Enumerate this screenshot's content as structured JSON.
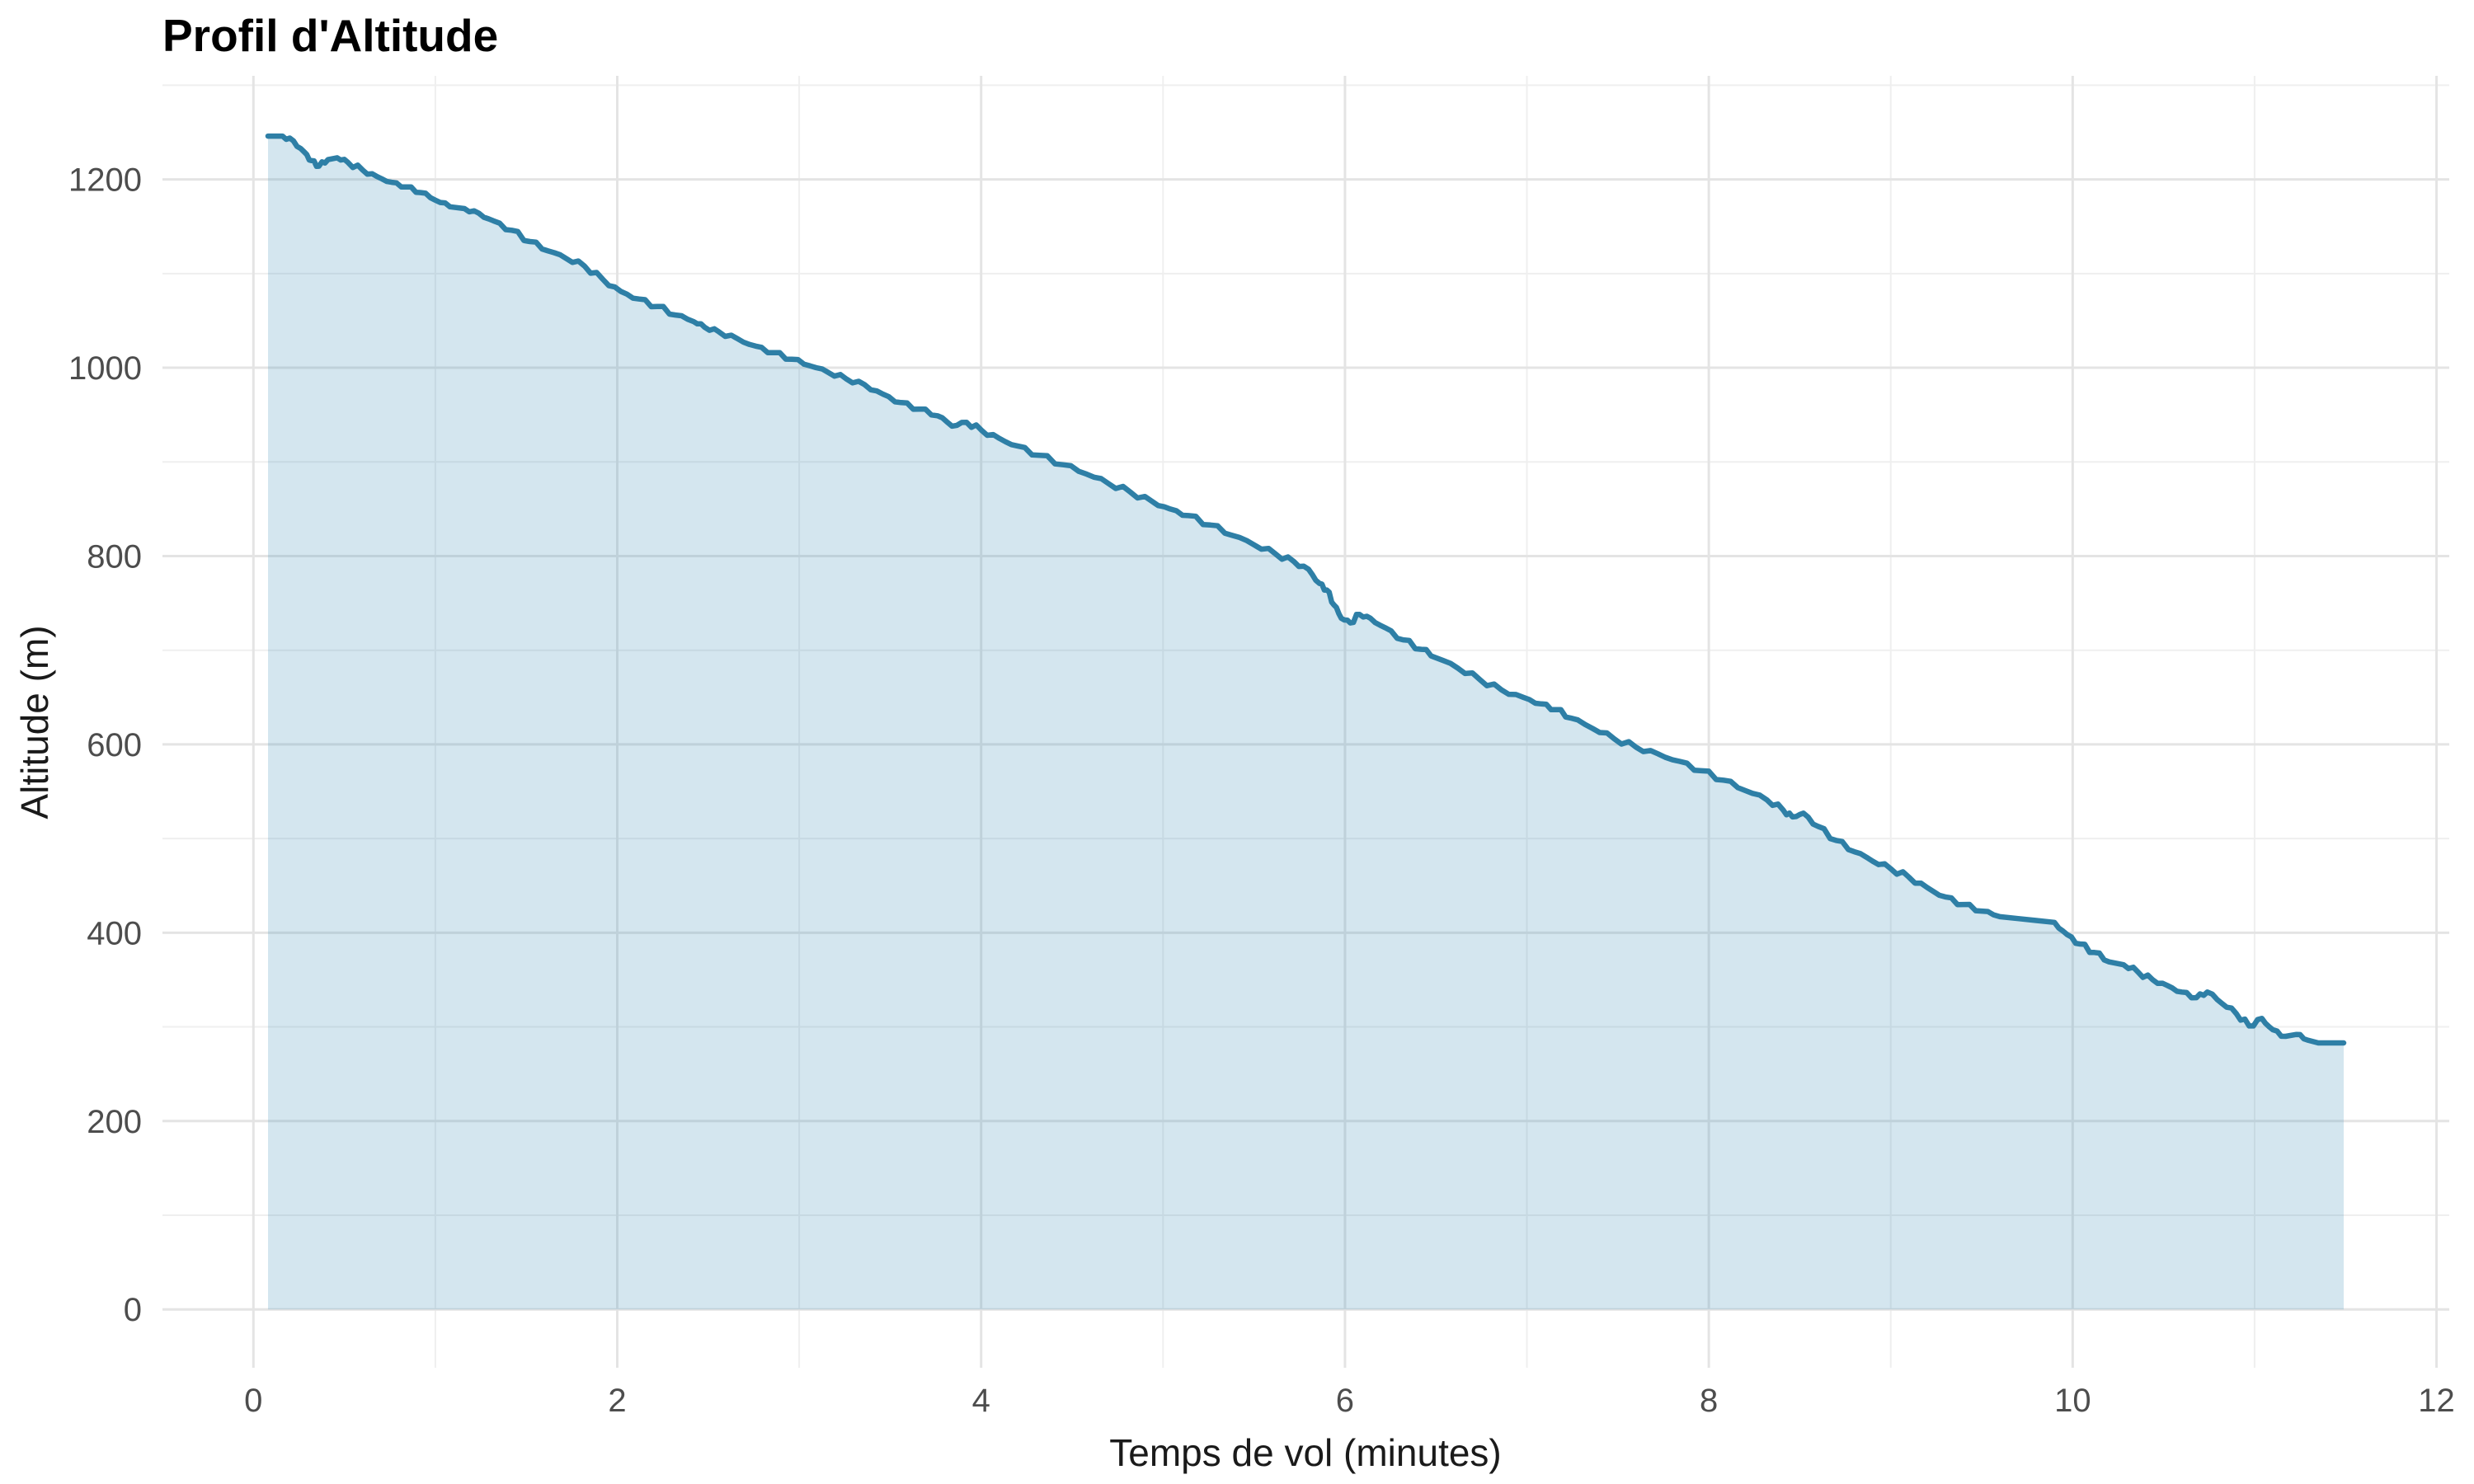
{
  "chart_data": {
    "type": "area",
    "title": "Profil d'Altitude",
    "xlabel": "Temps de vol (minutes)",
    "ylabel": "Altitude (m)",
    "x_ticks_major": [
      0,
      2,
      4,
      6,
      8,
      10,
      12
    ],
    "x_ticks_minor": [
      1,
      3,
      5,
      7,
      9,
      11
    ],
    "y_ticks_major": [
      0,
      200,
      400,
      600,
      800,
      1000,
      1200
    ],
    "y_ticks_minor": [
      100,
      300,
      500,
      700,
      900,
      1100,
      1300
    ],
    "xlim": [
      -0.5,
      12.07
    ],
    "ylim": [
      -62,
      1310
    ],
    "grid": {
      "major": true,
      "minor": true
    },
    "legend": false,
    "series": [
      {
        "name": "altitude",
        "x": [
          0.08,
          0.16,
          0.22,
          0.28,
          0.32,
          0.36,
          0.41,
          0.46,
          0.52,
          0.6,
          0.68,
          0.76,
          0.84,
          0.92,
          1.0,
          1.08,
          1.16,
          1.24,
          1.32,
          1.42,
          1.52,
          1.62,
          1.72,
          1.82,
          1.92,
          2.02,
          2.12,
          2.22,
          2.32,
          2.42,
          2.48,
          2.56,
          2.66,
          2.76,
          2.86,
          2.96,
          3.06,
          3.16,
          3.26,
          3.36,
          3.46,
          3.56,
          3.66,
          3.76,
          3.84,
          3.92,
          4.0,
          4.1,
          4.2,
          4.32,
          4.45,
          4.58,
          4.7,
          4.82,
          4.94,
          5.04,
          5.14,
          5.26,
          5.38,
          5.5,
          5.62,
          5.72,
          5.8,
          5.86,
          5.9,
          5.94,
          5.98,
          6.03,
          6.08,
          6.14,
          6.22,
          6.32,
          6.42,
          6.5,
          6.62,
          6.74,
          6.86,
          6.98,
          7.08,
          7.16,
          7.24,
          7.36,
          7.48,
          7.6,
          7.72,
          7.84,
          7.96,
          8.08,
          8.2,
          8.32,
          8.41,
          8.46,
          8.52,
          8.6,
          8.7,
          8.8,
          8.9,
          9.0,
          9.1,
          9.2,
          9.3,
          9.4,
          9.5,
          9.6,
          9.7,
          9.8,
          9.9,
          9.97,
          10.04,
          10.12,
          10.2,
          10.28,
          10.36,
          10.44,
          10.52,
          10.6,
          10.68,
          10.74,
          10.82,
          10.9,
          10.97,
          11.04,
          11.1,
          11.17,
          11.23,
          11.29,
          11.35,
          11.42,
          11.49
        ],
        "y": [
          1246,
          1246,
          1241,
          1229,
          1220,
          1214,
          1221,
          1223,
          1218,
          1210,
          1203,
          1197,
          1192,
          1186,
          1178,
          1171,
          1169,
          1164,
          1156,
          1146,
          1134,
          1124,
          1116,
          1108,
          1094,
          1081,
          1073,
          1065,
          1056,
          1049,
          1043,
          1038,
          1031,
          1023,
          1016,
          1009,
          1002,
          995,
          988,
          982,
          972,
          963,
          956,
          949,
          938,
          942,
          934,
          925,
          917,
          907,
          897,
          887,
          877,
          868,
          858,
          850,
          843,
          833,
          822,
          812,
          802,
          794,
          786,
          771,
          764,
          748,
          734,
          729,
          738,
          734,
          724,
          711,
          701,
          692,
          681,
          669,
          658,
          650,
          643,
          637,
          628,
          617,
          606,
          597,
          590,
          582,
          572,
          562,
          551,
          541,
          530,
          523,
          527,
          513,
          498,
          486,
          476,
          468,
          459,
          448,
          438,
          430,
          423,
          417,
          415,
          413,
          411,
          398,
          388,
          379,
          369,
          366,
          358,
          350,
          344,
          337,
          331,
          337,
          325,
          314,
          301,
          309,
          297,
          290,
          292,
          286,
          283,
          283,
          283
        ]
      }
    ],
    "colors": {
      "line": "#2E7FA6",
      "fill": "rgba(60,140,180,0.22)",
      "grid_major": "#E4E4E4",
      "grid_minor": "#EFEFEF",
      "tick_label": "#4D4D4D",
      "axis_title": "#1A1A1A",
      "title": "#000000",
      "background": "#FFFFFF"
    }
  }
}
